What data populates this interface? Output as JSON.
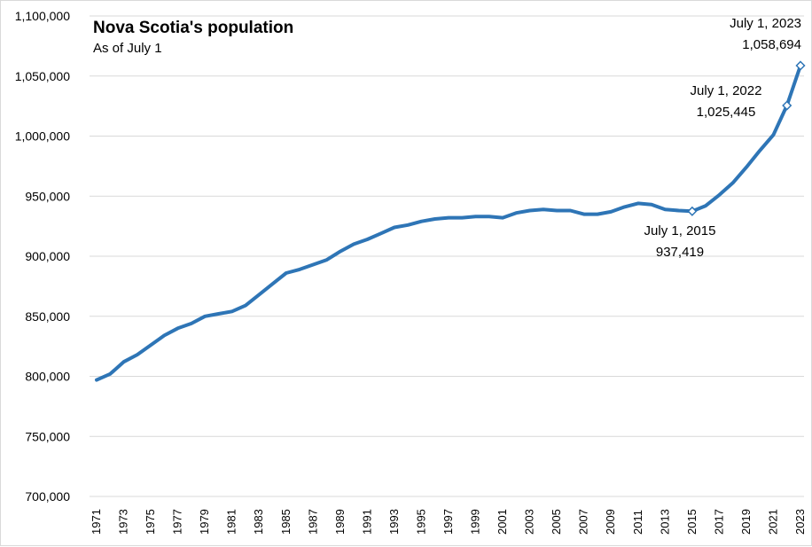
{
  "chart_data": {
    "type": "line",
    "title": "Nova Scotia's population",
    "subtitle": "As of July 1",
    "xlabel": "",
    "ylabel": "",
    "ylim": [
      700000,
      1100000
    ],
    "y_ticks": [
      "700,000",
      "750,000",
      "800,000",
      "850,000",
      "900,000",
      "950,000",
      "1,000,000",
      "1,050,000",
      "1,100,000"
    ],
    "y_tick_values": [
      700000,
      750000,
      800000,
      850000,
      900000,
      950000,
      1000000,
      1050000,
      1100000
    ],
    "x_tick_labels": [
      "1971",
      "1973",
      "1975",
      "1977",
      "1979",
      "1981",
      "1983",
      "1985",
      "1987",
      "1989",
      "1991",
      "1993",
      "1995",
      "1997",
      "1999",
      "2001",
      "2003",
      "2005",
      "2007",
      "2009",
      "2011",
      "2013",
      "2015",
      "2017",
      "2019",
      "2021",
      "2023"
    ],
    "grid": true,
    "legend": "none",
    "line_color": "#2e75b6",
    "x": [
      1971,
      1972,
      1973,
      1974,
      1975,
      1976,
      1977,
      1978,
      1979,
      1980,
      1981,
      1982,
      1983,
      1984,
      1985,
      1986,
      1987,
      1988,
      1989,
      1990,
      1991,
      1992,
      1993,
      1994,
      1995,
      1996,
      1997,
      1998,
      1999,
      2000,
      2001,
      2002,
      2003,
      2004,
      2005,
      2006,
      2007,
      2008,
      2009,
      2010,
      2011,
      2012,
      2013,
      2014,
      2015,
      2016,
      2017,
      2018,
      2019,
      2020,
      2021,
      2022,
      2023
    ],
    "series": [
      {
        "values": [
          797000,
          802000,
          812000,
          818000,
          826000,
          834000,
          840000,
          844000,
          850000,
          852000,
          854000,
          859000,
          868000,
          877000,
          886000,
          889000,
          893000,
          897000,
          904000,
          910000,
          914000,
          919000,
          924000,
          926000,
          929000,
          931000,
          932000,
          932000,
          933000,
          933000,
          932000,
          936000,
          938000,
          939000,
          938000,
          938000,
          935000,
          935000,
          937000,
          941000,
          944000,
          943000,
          939000,
          938000,
          937419,
          942000,
          951000,
          961000,
          974000,
          988000,
          1001000,
          1025445,
          1058694
        ]
      }
    ],
    "markers": [
      2015,
      2022,
      2023
    ],
    "annotations": [
      {
        "x": 2015,
        "line1": "July 1, 2015",
        "line2": "937,419"
      },
      {
        "x": 2022,
        "line1": "July 1, 2022",
        "line2": "1,025,445"
      },
      {
        "x": 2023,
        "line1": "July 1, 2023",
        "line2": "1,058,694"
      }
    ]
  }
}
